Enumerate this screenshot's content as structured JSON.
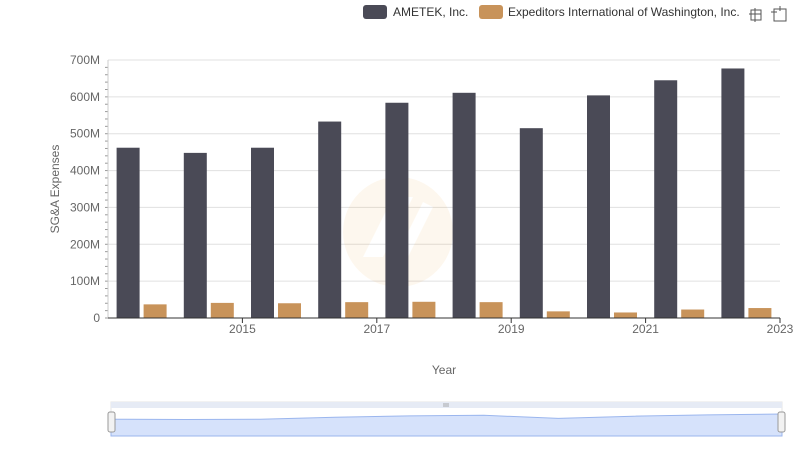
{
  "toolbar": {
    "icons": [
      "zoom-icon",
      "reset-zoom-icon"
    ]
  },
  "colors": {
    "ametek": "#4a4a56",
    "expeditors": "#c8935a",
    "grid": "#e0e0e0",
    "navigator_fill": "#d6e2fb",
    "navigator_line": "#9bb6ee"
  },
  "chart_data": {
    "type": "bar",
    "title": "",
    "xlabel": "Year",
    "ylabel": "SG&A Expenses",
    "x": [
      2014,
      2015,
      2016,
      2017,
      2018,
      2019,
      2020,
      2021,
      2022,
      2023
    ],
    "x_tick_labels": [
      "2015",
      "2017",
      "2019",
      "2021",
      "2023"
    ],
    "y_tick_labels": [
      "0",
      "100M",
      "200M",
      "300M",
      "400M",
      "500M",
      "600M",
      "700M"
    ],
    "ylim": [
      0,
      700000000
    ],
    "grid": true,
    "legend_position": "top-right",
    "series": [
      {
        "name": "AMETEK, Inc.",
        "values": [
          462000000,
          448000000,
          462000000,
          533000000,
          584000000,
          611000000,
          515000000,
          604000000,
          645000000,
          677000000
        ]
      },
      {
        "name": "Expeditors International of Washington, Inc.",
        "values": [
          37000000,
          41000000,
          40000000,
          43000000,
          44000000,
          43000000,
          18000000,
          15000000,
          23000000,
          27000000
        ]
      }
    ]
  }
}
